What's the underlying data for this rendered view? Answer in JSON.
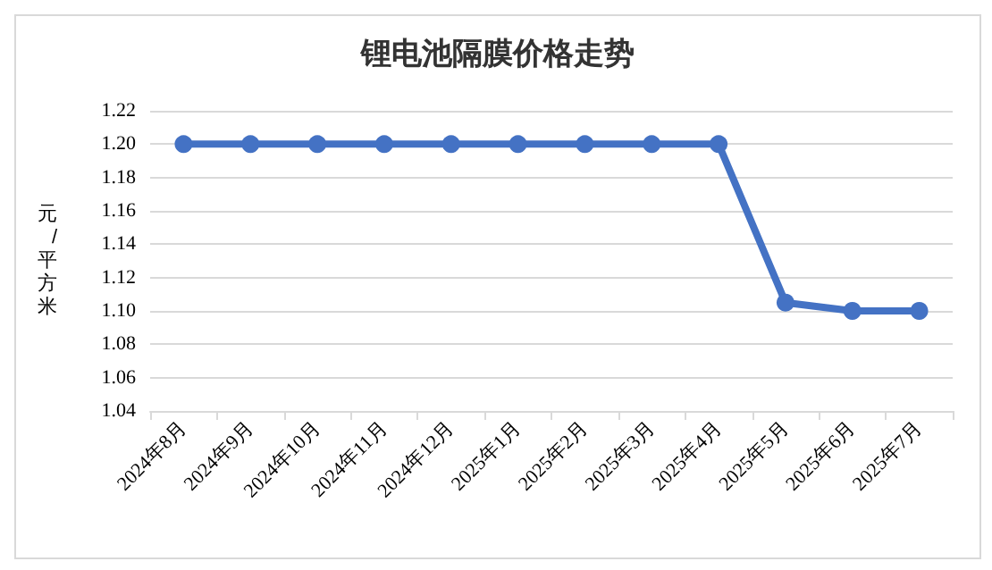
{
  "chart_data": {
    "type": "line",
    "title": "锂电池隔膜价格走势",
    "ylabel": "元/平方米",
    "categories": [
      "2024年8月",
      "2024年9月",
      "2024年10月",
      "2024年11月",
      "2024年12月",
      "2025年1月",
      "2025年2月",
      "2025年3月",
      "2025年4月",
      "2025年5月",
      "2025年6月",
      "2025年7月"
    ],
    "series": [
      {
        "color": "#4472c4",
        "values": [
          1.2,
          1.2,
          1.2,
          1.2,
          1.2,
          1.2,
          1.2,
          1.2,
          1.2,
          1.105,
          1.1,
          1.1
        ]
      }
    ],
    "ylim": [
      1.04,
      1.22
    ],
    "yticks": [
      1.04,
      1.06,
      1.08,
      {
        "value": 1.1,
        "label": "1.10"
      },
      1.12,
      1.14,
      1.16,
      1.18,
      {
        "value": 1.2,
        "label": "1.20"
      },
      1.22
    ],
    "grid": "y",
    "marker": "circle",
    "line_style": "solid"
  }
}
